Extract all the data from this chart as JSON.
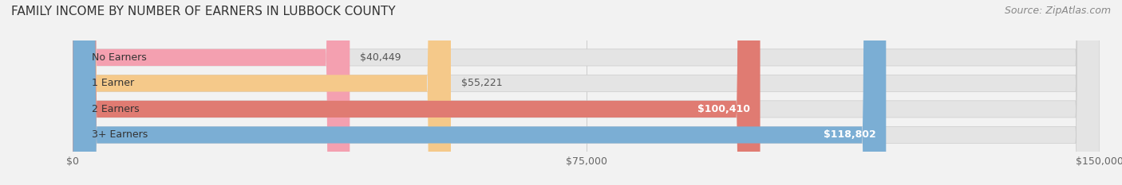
{
  "title": "FAMILY INCOME BY NUMBER OF EARNERS IN LUBBOCK COUNTY",
  "source": "Source: ZipAtlas.com",
  "categories": [
    "No Earners",
    "1 Earner",
    "2 Earners",
    "3+ Earners"
  ],
  "values": [
    40449,
    55221,
    100410,
    118802
  ],
  "bar_colors": [
    "#f4a0b0",
    "#f5c98a",
    "#e07b72",
    "#7baed4"
  ],
  "label_colors": [
    "#555555",
    "#555555",
    "#ffffff",
    "#ffffff"
  ],
  "xlim": [
    0,
    150000
  ],
  "xticks": [
    0,
    75000,
    150000
  ],
  "xtick_labels": [
    "$0",
    "$75,000",
    "$150,000"
  ],
  "background_color": "#f2f2f2",
  "bar_background_color": "#e4e4e4",
  "title_fontsize": 11,
  "source_fontsize": 9,
  "label_fontsize": 9,
  "tick_fontsize": 9
}
